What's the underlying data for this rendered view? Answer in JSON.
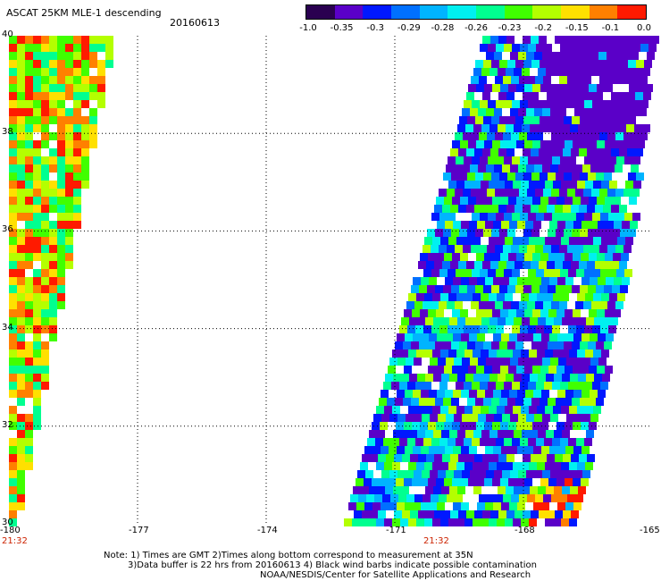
{
  "header": {
    "title": "ASCAT 25KM MLE-1 descending",
    "date": "20160613"
  },
  "colorbar": {
    "labels": [
      "-1.0",
      "-0.35",
      "-0.3",
      "-0.29",
      "-0.28",
      "-0.26",
      "-0.23",
      "-0.2",
      "-0.15",
      "-0.1",
      "0.0"
    ],
    "colors": [
      "#2a0050",
      "#5a00c8",
      "#0018ff",
      "#0070ff",
      "#00b4ff",
      "#00f0f0",
      "#00ff90",
      "#40ff00",
      "#b4ff00",
      "#ffe000",
      "#ff8000",
      "#ff1a00"
    ]
  },
  "axes": {
    "lat_labels": [
      "40",
      "38",
      "36",
      "34",
      "32",
      "30"
    ],
    "lon_labels": [
      "-180",
      "-177",
      "-174",
      "-171",
      "-168",
      "-165"
    ],
    "lon_range": [
      -180,
      -165
    ],
    "lat_range": [
      30,
      40
    ],
    "grid": true
  },
  "times": {
    "left": "21:32",
    "right": "21:32"
  },
  "notes": {
    "line1": "Note: 1) Times are GMT 2)Times along bottom correspond to measurement at 35N",
    "line2": "3)Data buffer is 22 hrs from 20160613 4) Black wind barbs indicate possible contamination",
    "line3": "NOAA/NESDIS/Center for Satellite Applications and Research"
  }
}
